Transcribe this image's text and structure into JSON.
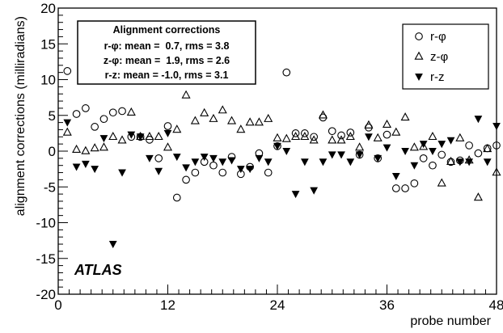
{
  "chart_data": {
    "type": "scatter",
    "xlabel": "probe number",
    "ylabel": "alignment corrections (milliradians)",
    "xlim": [
      0,
      48
    ],
    "ylim": [
      -20,
      20
    ],
    "x_ticks": [
      "0",
      "12",
      "24",
      "36",
      "48"
    ],
    "y_ticks": [
      "-20",
      "-15",
      "-10",
      "-5",
      "0",
      "5",
      "10",
      "15",
      "20"
    ],
    "grid": false,
    "legend_position": "top-right",
    "experiment_label": "ATLAS",
    "stats_box": {
      "title": "Alignment corrections",
      "lines": [
        "r-φ: mean =  0.7, rms = 3.8",
        "z-φ: mean =  1.9, rms = 2.6",
        "r-z: mean = -1.0, rms = 3.1"
      ]
    },
    "series": [
      {
        "name": "r-φ",
        "marker": "open-circle",
        "x": [
          1,
          2,
          3,
          4,
          5,
          6,
          7,
          8,
          9,
          10,
          11,
          12,
          13,
          14,
          15,
          16,
          17,
          18,
          19,
          20,
          21,
          22,
          23,
          24,
          25,
          26,
          27,
          28,
          29,
          30,
          31,
          32,
          33,
          34,
          35,
          36,
          37,
          38,
          39,
          40,
          41,
          42,
          43,
          44,
          45,
          46,
          47,
          48
        ],
        "y": [
          11.2,
          5.2,
          6.0,
          3.4,
          4.5,
          5.4,
          5.6,
          2.0,
          2.0,
          1.6,
          -1.0,
          3.5,
          -6.5,
          -4.0,
          -3.0,
          -1.5,
          -2.0,
          -3.0,
          -0.8,
          -3.2,
          -2.2,
          -0.3,
          -3.0,
          0.7,
          11.0,
          2.5,
          2.5,
          2.0,
          4.7,
          2.8,
          2.2,
          2.6,
          -0.5,
          3.3,
          -1.0,
          2.3,
          -5.2,
          -5.2,
          -4.5,
          -1.0,
          -2.0,
          -0.5,
          -1.5,
          -1.3,
          0.8,
          -0.3,
          0.4,
          0.8
        ]
      },
      {
        "name": "z-φ",
        "marker": "open-triangle",
        "x": [
          1,
          2,
          3,
          4,
          5,
          6,
          7,
          8,
          9,
          10,
          11,
          12,
          13,
          14,
          15,
          16,
          17,
          18,
          19,
          20,
          21,
          22,
          23,
          24,
          25,
          26,
          27,
          28,
          29,
          30,
          31,
          32,
          33,
          34,
          35,
          36,
          37,
          38,
          39,
          40,
          41,
          42,
          43,
          44,
          45,
          46,
          47,
          48
        ],
        "y": [
          2.6,
          0.2,
          0.0,
          0.4,
          0.5,
          2.0,
          1.5,
          5.4,
          2.0,
          2.0,
          2.0,
          0.5,
          3.0,
          7.8,
          4.2,
          5.3,
          4.5,
          5.7,
          4.2,
          3.0,
          4.0,
          4.0,
          4.5,
          1.8,
          1.7,
          2.0,
          2.0,
          1.5,
          5.0,
          1.5,
          1.5,
          2.0,
          0.5,
          3.6,
          1.8,
          3.7,
          2.6,
          4.7,
          0.5,
          0.6,
          2.0,
          -4.5,
          -1.5,
          1.8,
          -1.3,
          -6.5,
          0.3,
          -3.0
        ]
      },
      {
        "name": "r-z",
        "marker": "filled-triangle-down",
        "x": [
          1,
          2,
          3,
          4,
          5,
          6,
          7,
          8,
          9,
          10,
          11,
          12,
          13,
          14,
          15,
          16,
          17,
          18,
          19,
          20,
          21,
          22,
          23,
          24,
          25,
          26,
          27,
          28,
          29,
          30,
          31,
          32,
          33,
          34,
          35,
          36,
          37,
          38,
          39,
          40,
          41,
          42,
          43,
          44,
          45,
          46,
          47,
          48
        ],
        "y": [
          4.0,
          -2.2,
          -1.8,
          -2.5,
          1.8,
          -13.0,
          -3.0,
          2.3,
          2.0,
          -1.0,
          -2.8,
          2.5,
          -0.8,
          -2.3,
          -1.5,
          -0.8,
          -1.0,
          -1.5,
          -1.3,
          -2.5,
          -2.5,
          -1.0,
          -1.5,
          0.7,
          0.0,
          -6.0,
          -1.5,
          -5.5,
          -1.5,
          -0.5,
          -0.5,
          -1.5,
          -0.5,
          2.0,
          -1.0,
          0.5,
          -3.5,
          0.0,
          -2.0,
          1.0,
          0.0,
          1.0,
          1.5,
          -1.5,
          -1.5,
          4.5,
          -1.5,
          3.5
        ]
      }
    ]
  }
}
